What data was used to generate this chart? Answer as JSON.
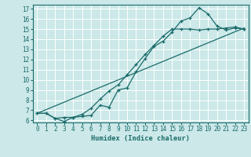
{
  "title": "",
  "xlabel": "Humidex (Indice chaleur)",
  "ylabel": "",
  "bg_color": "#cce8e8",
  "line_color": "#1a6b6b",
  "grid_color": "#ffffff",
  "xlim": [
    -0.5,
    23.5
  ],
  "ylim": [
    5.8,
    17.4
  ],
  "xticks": [
    0,
    1,
    2,
    3,
    4,
    5,
    6,
    7,
    8,
    9,
    10,
    11,
    12,
    13,
    14,
    15,
    16,
    17,
    18,
    19,
    20,
    21,
    22,
    23
  ],
  "yticks": [
    6,
    7,
    8,
    9,
    10,
    11,
    12,
    13,
    14,
    15,
    16,
    17
  ],
  "line1_x": [
    0,
    1,
    2,
    3,
    4,
    5,
    6,
    7,
    8,
    9,
    10,
    11,
    12,
    13,
    14,
    15,
    16,
    17,
    18,
    19,
    20,
    21,
    22,
    23
  ],
  "line1_y": [
    6.7,
    6.7,
    6.2,
    5.9,
    6.3,
    6.4,
    6.5,
    7.5,
    7.3,
    9.0,
    9.2,
    10.8,
    12.1,
    13.3,
    13.8,
    14.7,
    15.8,
    16.1,
    17.1,
    16.5,
    15.3,
    14.9,
    15.1,
    15.0
  ],
  "line2_x": [
    0,
    1,
    2,
    3,
    4,
    5,
    6,
    7,
    8,
    9,
    10,
    11,
    12,
    13,
    14,
    15,
    16,
    17,
    18,
    19,
    20,
    21,
    22,
    23
  ],
  "line2_y": [
    6.7,
    6.7,
    6.2,
    6.3,
    6.3,
    6.6,
    7.2,
    8.1,
    8.9,
    9.5,
    10.5,
    11.5,
    12.5,
    13.4,
    14.3,
    15.0,
    15.0,
    15.0,
    14.9,
    15.0,
    15.0,
    15.1,
    15.2,
    15.0
  ],
  "line3_x": [
    0,
    23
  ],
  "line3_y": [
    6.7,
    15.1
  ],
  "marker_size": 3.5,
  "linewidth": 0.9,
  "tick_labelsize": 5.5,
  "xlabel_fontsize": 6.2
}
